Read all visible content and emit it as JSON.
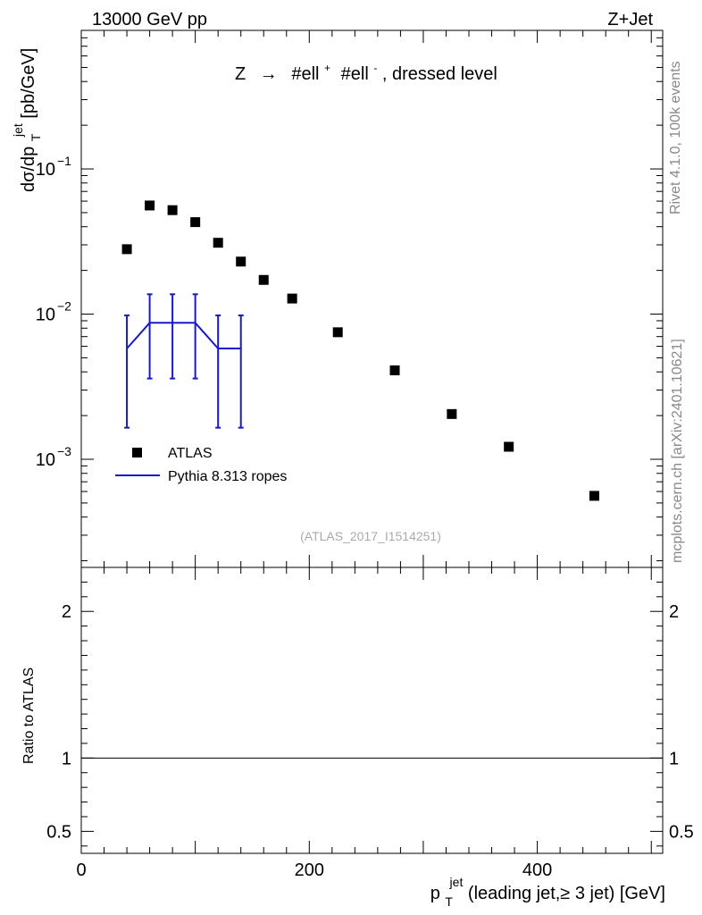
{
  "header": {
    "left": "13000 GeV pp",
    "right": "Z+Jet"
  },
  "side_labels": {
    "rivet": "Rivet 4.1.0,  100k events",
    "mcplots": "mcplots.cern.ch [arXiv:2401.10621]"
  },
  "chart_data": [
    {
      "type": "scatter",
      "title": "Z → #ell⁺ #ell⁻, dressed level",
      "title_parts": {
        "z": "Z",
        "arrow": "→",
        "ell1": "#ell",
        "sup1": "+",
        "ell2": "#ell",
        "sup2": "-",
        "rest": ", dressed level"
      },
      "watermark": "(ATLAS_2017_I1514251)",
      "ylabel": "dσ/dp_T^jet [pb/GeV]",
      "ylabel_parts": {
        "main": "dσ/dp",
        "sub": "T",
        "sup": "jet",
        "unit": " [pb/GeV]"
      },
      "yscale": "log",
      "ylim": [
        0.00018,
        0.9
      ],
      "xlim": [
        0,
        510
      ],
      "y_tick_labels": [
        {
          "value": 0.1,
          "base": "10",
          "exp": "−1"
        },
        {
          "value": 0.01,
          "base": "10",
          "exp": "−2"
        },
        {
          "value": 0.001,
          "base": "10",
          "exp": "−3"
        }
      ],
      "legend": {
        "position": "lower-left",
        "entries": [
          "ATLAS",
          "Pythia 8.313 ropes"
        ]
      },
      "series": [
        {
          "name": "ATLAS",
          "marker": "square",
          "color": "#000000",
          "x": [
            40,
            60,
            80,
            100,
            120,
            140,
            160,
            185,
            225,
            275,
            325,
            375,
            450
          ],
          "y": [
            0.028,
            0.056,
            0.052,
            0.043,
            0.031,
            0.023,
            0.0172,
            0.0128,
            0.0075,
            0.0041,
            0.00205,
            0.00122,
            0.00056
          ]
        },
        {
          "name": "Pythia 8.313 ropes",
          "marker": "line",
          "color": "#1919cc",
          "bins": [
            [
              40,
              50
            ],
            [
              50,
              70
            ],
            [
              70,
              90
            ],
            [
              90,
              110
            ],
            [
              110,
              130
            ],
            [
              130,
              150
            ]
          ],
          "x": [
            40,
            60,
            80,
            100,
            120,
            140
          ],
          "y": [
            0.0058,
            0.0087,
            0.0087,
            0.0087,
            0.0058,
            0.0058
          ],
          "yerr_low": [
            0.00165,
            0.0036,
            0.0036,
            0.0036,
            0.00165,
            0.00165
          ],
          "yerr_high": [
            0.0098,
            0.0137,
            0.0137,
            0.0137,
            0.0098,
            0.0098
          ]
        }
      ]
    },
    {
      "type": "line",
      "ylabel": "Ratio to ATLAS",
      "xlabel": "p_T^jet (leading jet,≥ 3 jet) [GeV]",
      "xlabel_parts": {
        "p": "p",
        "sub": "T",
        "sup": "jet",
        "rest": " (leading jet,≥ 3 jet) [GeV]"
      },
      "ylim": [
        0.35,
        2.3
      ],
      "xlim": [
        0,
        510
      ],
      "y_ticks": [
        "0.5",
        "1",
        "2"
      ],
      "x_ticks": [
        "0",
        "200",
        "400"
      ],
      "reference_line": 1
    }
  ]
}
